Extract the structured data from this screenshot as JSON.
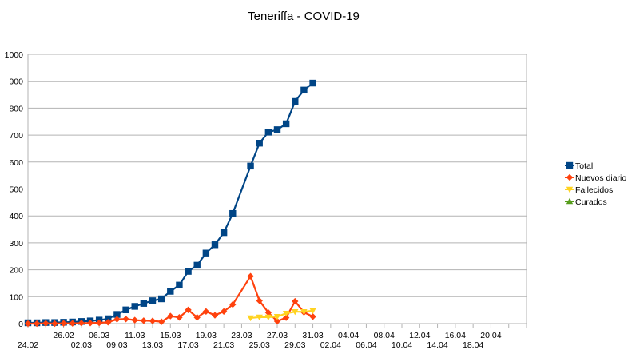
{
  "chart_data": {
    "type": "line",
    "title": "Teneriffa - COVID-19",
    "xlabel": "",
    "ylabel": "",
    "ylim": [
      0,
      1000
    ],
    "y_ticks": [
      0,
      100,
      200,
      300,
      400,
      500,
      600,
      700,
      800,
      900,
      1000
    ],
    "grid": "horizontal",
    "legend_position": "right",
    "x_tick_labels": [
      "24.02",
      "26.02",
      "02.03",
      "06.03",
      "09.03",
      "11.03",
      "13.03",
      "15.03",
      "17.03",
      "19.03",
      "21.03",
      "23.03",
      "25.03",
      "27.03",
      "29.03",
      "31.03",
      "02.04",
      "04.04",
      "06.04",
      "08.04",
      "10.04",
      "12.04",
      "14.04",
      "16.04",
      "18.04",
      "20.04"
    ],
    "series": [
      {
        "name": "Total",
        "color": "#004586",
        "marker": "square",
        "values": [
          3,
          3,
          4,
          4,
          5,
          6,
          8,
          10,
          13,
          18,
          34,
          51,
          64,
          75,
          85,
          92,
          120,
          143,
          194,
          217,
          262,
          293,
          338,
          409,
          null,
          585,
          670,
          711,
          720,
          742,
          825,
          867,
          893
        ]
      },
      {
        "name": "Nuevos diario",
        "color": "#ff420e",
        "marker": "diamond",
        "values": [
          0,
          0,
          1,
          0,
          1,
          1,
          2,
          2,
          3,
          5,
          16,
          17,
          13,
          11,
          10,
          7,
          28,
          23,
          51,
          23,
          45,
          31,
          45,
          71,
          null,
          176,
          85,
          41,
          9,
          22,
          83,
          42,
          26
        ]
      },
      {
        "name": "Fallecidos",
        "color": "#ffd320",
        "marker": "triangle-down",
        "values": [
          null,
          null,
          null,
          null,
          null,
          null,
          null,
          null,
          null,
          null,
          null,
          null,
          null,
          null,
          null,
          null,
          null,
          null,
          null,
          null,
          null,
          null,
          null,
          null,
          null,
          21,
          24,
          24,
          26,
          38,
          44,
          44,
          48
        ]
      },
      {
        "name": "Curados",
        "color": "#579d1c",
        "marker": "triangle-up",
        "values": []
      }
    ]
  }
}
